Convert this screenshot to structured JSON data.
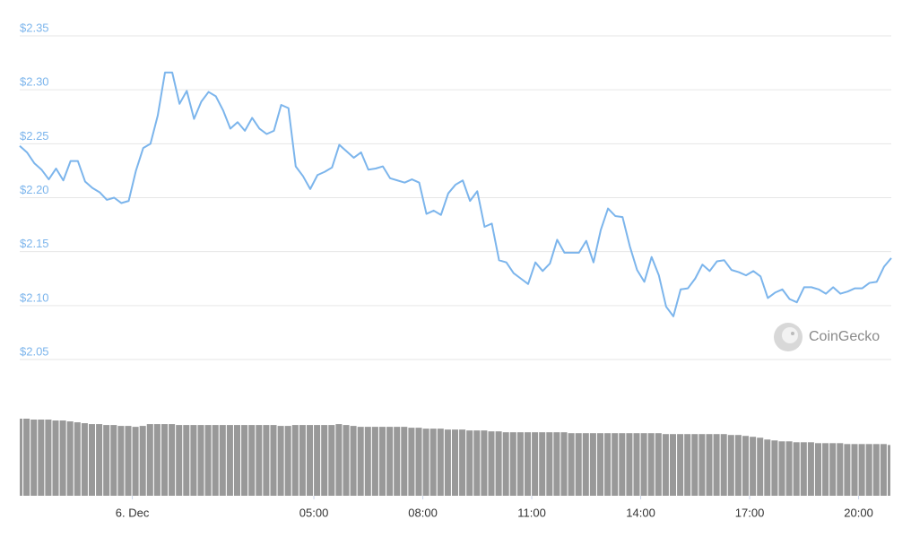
{
  "chart_data": [
    {
      "type": "line",
      "x": [
        -3.1,
        -2.9,
        -2.7,
        -2.5,
        -2.3,
        -2.1,
        -1.9,
        -1.7,
        -1.5,
        -1.3,
        -1.1,
        -0.9,
        -0.7,
        -0.5,
        -0.3,
        -0.1,
        0.1,
        0.3,
        0.5,
        0.7,
        0.9,
        1.1,
        1.3,
        1.5,
        1.7,
        1.9,
        2.1,
        2.3,
        2.5,
        2.7,
        2.9,
        3.1,
        3.3,
        3.5,
        3.7,
        3.9,
        4.1,
        4.3,
        4.5,
        4.7,
        4.9,
        5.1,
        5.3,
        5.5,
        5.7,
        5.9,
        6.1,
        6.3,
        6.5,
        6.7,
        6.9,
        7.1,
        7.3,
        7.5,
        7.7,
        7.9,
        8.1,
        8.3,
        8.5,
        8.7,
        8.9,
        9.1,
        9.3,
        9.5,
        9.7,
        9.9,
        10.1,
        10.3,
        10.5,
        10.7,
        10.9,
        11.1,
        11.3,
        11.5,
        11.7,
        11.9,
        12.1,
        12.3,
        12.5,
        12.7,
        12.9,
        13.1,
        13.3,
        13.5,
        13.7,
        13.9,
        14.1,
        14.3,
        14.5,
        14.7,
        14.9,
        15.1,
        15.3,
        15.5,
        15.7,
        15.9,
        16.1,
        16.3,
        16.5,
        16.7,
        16.9,
        17.1,
        17.3,
        17.5,
        17.7,
        17.9,
        18.1,
        18.3,
        18.5,
        18.7,
        18.9,
        19.1,
        19.3,
        19.5,
        19.7,
        19.9,
        20.1,
        20.3,
        20.5,
        20.7,
        20.9
      ],
      "xlim": [
        -3.1,
        20.9
      ],
      "ylim": [
        2.05,
        2.35
      ],
      "yticks": [
        {
          "value": 2.05,
          "label": "$2.05"
        },
        {
          "value": 2.1,
          "label": "$2.10"
        },
        {
          "value": 2.15,
          "label": "$2.15"
        },
        {
          "value": 2.2,
          "label": "$2.20"
        },
        {
          "value": 2.25,
          "label": "$2.25"
        },
        {
          "value": 2.3,
          "label": "$2.30"
        },
        {
          "value": 2.35,
          "label": "$2.35"
        }
      ],
      "grid": true,
      "series": [
        {
          "color": "#7cb5ec",
          "values": [
            2.248,
            2.242,
            2.232,
            2.226,
            2.217,
            2.227,
            2.216,
            2.234,
            2.234,
            2.215,
            2.209,
            2.205,
            2.198,
            2.2,
            2.195,
            2.197,
            2.225,
            2.246,
            2.25,
            2.276,
            2.316,
            2.316,
            2.287,
            2.299,
            2.273,
            2.289,
            2.298,
            2.294,
            2.281,
            2.264,
            2.27,
            2.262,
            2.274,
            2.264,
            2.259,
            2.262,
            2.286,
            2.283,
            2.229,
            2.22,
            2.208,
            2.221,
            2.224,
            2.228,
            2.249,
            2.243,
            2.237,
            2.242,
            2.226,
            2.227,
            2.229,
            2.218,
            2.216,
            2.214,
            2.217,
            2.214,
            2.185,
            2.188,
            2.184,
            2.204,
            2.212,
            2.216,
            2.197,
            2.206,
            2.173,
            2.176,
            2.142,
            2.14,
            2.13,
            2.125,
            2.12,
            2.14,
            2.132,
            2.139,
            2.161,
            2.149,
            2.149,
            2.149,
            2.16,
            2.14,
            2.17,
            2.19,
            2.183,
            2.182,
            2.155,
            2.133,
            2.122,
            2.145,
            2.128,
            2.099,
            2.09,
            2.115,
            2.116,
            2.125,
            2.138,
            2.132,
            2.141,
            2.142,
            2.133,
            2.131,
            2.128,
            2.132,
            2.127,
            2.107,
            2.112,
            2.115,
            2.106,
            2.103,
            2.117,
            2.117,
            2.115,
            2.111,
            2.117,
            2.111,
            2.113,
            2.116,
            2.116,
            2.121,
            2.122,
            2.136,
            2.144
          ]
        }
      ],
      "watermark": "CoinGecko"
    },
    {
      "type": "bar",
      "x": [
        -3.1,
        -2.9,
        -2.7,
        -2.5,
        -2.3,
        -2.1,
        -1.9,
        -1.7,
        -1.5,
        -1.3,
        -1.1,
        -0.9,
        -0.7,
        -0.5,
        -0.3,
        -0.1,
        0.1,
        0.3,
        0.5,
        0.7,
        0.9,
        1.1,
        1.3,
        1.5,
        1.7,
        1.9,
        2.1,
        2.3,
        2.5,
        2.7,
        2.9,
        3.1,
        3.3,
        3.5,
        3.7,
        3.9,
        4.1,
        4.3,
        4.5,
        4.7,
        4.9,
        5.1,
        5.3,
        5.5,
        5.7,
        5.9,
        6.1,
        6.3,
        6.5,
        6.7,
        6.9,
        7.1,
        7.3,
        7.5,
        7.7,
        7.9,
        8.1,
        8.3,
        8.5,
        8.7,
        8.9,
        9.1,
        9.3,
        9.5,
        9.7,
        9.9,
        10.1,
        10.3,
        10.5,
        10.7,
        10.9,
        11.1,
        11.3,
        11.5,
        11.7,
        11.9,
        12.1,
        12.3,
        12.5,
        12.7,
        12.9,
        13.1,
        13.3,
        13.5,
        13.7,
        13.9,
        14.1,
        14.3,
        14.5,
        14.7,
        14.9,
        15.1,
        15.3,
        15.5,
        15.7,
        15.9,
        16.1,
        16.3,
        16.5,
        16.7,
        16.9,
        17.1,
        17.3,
        17.5,
        17.7,
        17.9,
        18.1,
        18.3,
        18.5,
        18.7,
        18.9,
        19.1,
        19.3,
        19.5,
        19.7,
        19.9,
        20.1,
        20.3,
        20.5,
        20.7,
        20.9
      ],
      "xlim": [
        -3.1,
        20.9
      ],
      "xticks": [
        {
          "value": 0,
          "label": "6. Dec"
        },
        {
          "value": 5,
          "label": "05:00"
        },
        {
          "value": 8,
          "label": "08:00"
        },
        {
          "value": 11,
          "label": "11:00"
        },
        {
          "value": 14,
          "label": "14:00"
        },
        {
          "value": 17,
          "label": "17:00"
        },
        {
          "value": 20,
          "label": "20:00"
        }
      ],
      "color": "#999999",
      "values": [
        85,
        85,
        84,
        84,
        84,
        83,
        83,
        82,
        81,
        80,
        79,
        79,
        78,
        78,
        77,
        77,
        76,
        77,
        79,
        79,
        79,
        79,
        78,
        78,
        78,
        78,
        78,
        78,
        78,
        78,
        78,
        78,
        78,
        78,
        78,
        78,
        77,
        77,
        78,
        78,
        78,
        78,
        78,
        78,
        79,
        78,
        77,
        76,
        76,
        76,
        76,
        76,
        76,
        76,
        75,
        75,
        74,
        74,
        74,
        73,
        73,
        73,
        72,
        72,
        72,
        71,
        71,
        70,
        70,
        70,
        70,
        70,
        70,
        70,
        70,
        70,
        69,
        69,
        69,
        69,
        69,
        69,
        69,
        69,
        69,
        69,
        69,
        69,
        69,
        68,
        68,
        68,
        68,
        68,
        68,
        68,
        68,
        68,
        67,
        67,
        66,
        65,
        64,
        62,
        61,
        60,
        60,
        59,
        59,
        59,
        58,
        58,
        58,
        58,
        57,
        57,
        57,
        57,
        57,
        57,
        56
      ]
    }
  ]
}
